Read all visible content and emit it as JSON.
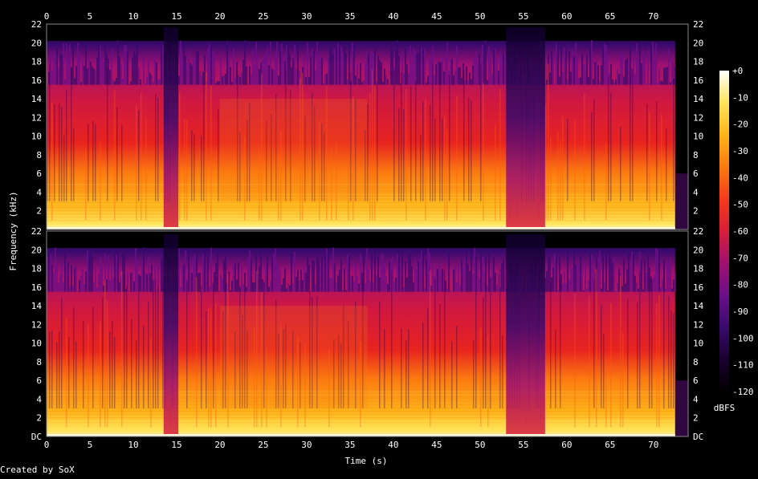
{
  "footer": {
    "credit": "Created by SoX"
  },
  "chart_data": {
    "type": "heatmap",
    "subtype": "spectrogram",
    "channels": 2,
    "xlabel": "Time (s)",
    "ylabel": "Frequency (kHz)",
    "xlim": [
      0,
      74
    ],
    "ylim": [
      0,
      22
    ],
    "x_ticks": [
      0,
      5,
      10,
      15,
      20,
      25,
      30,
      35,
      40,
      45,
      50,
      55,
      60,
      65,
      70
    ],
    "y_ticks": [
      "DC",
      "2",
      "4",
      "6",
      "8",
      "10",
      "12",
      "14",
      "16",
      "18",
      "20",
      "22"
    ],
    "colorbar": {
      "label": "dBFS",
      "range": [
        -120,
        0
      ],
      "ticks": [
        "+0",
        "-10",
        "-20",
        "-30",
        "-40",
        "-50",
        "-60",
        "-70",
        "-80",
        "-90",
        "-100",
        "-110",
        "-120"
      ],
      "colors": [
        "#000000",
        "#1a0030",
        "#3a0a6e",
        "#6b0f8a",
        "#a01070",
        "#d91e3a",
        "#f53a1c",
        "#fb7a10",
        "#fdb41a",
        "#fee45a",
        "#ffffff"
      ]
    },
    "audio_end_seconds": 72.5,
    "quiet_sections_seconds": [
      [
        13.5,
        15.2
      ],
      [
        53.0,
        57.5
      ]
    ],
    "loud_sections_seconds": [
      [
        20.0,
        37.0
      ]
    ]
  }
}
